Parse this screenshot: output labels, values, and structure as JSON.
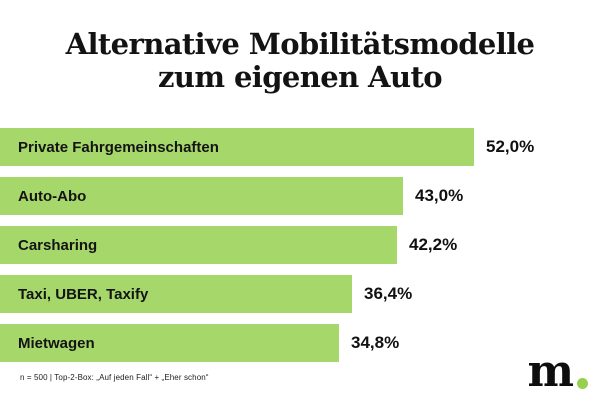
{
  "title": {
    "line1": "Alternative Mobilitätsmodelle",
    "line2": "zum eigenen Auto"
  },
  "chart_data": {
    "type": "bar",
    "orientation": "horizontal",
    "title": "Alternative Mobilitätsmodelle zum eigenen Auto",
    "categories": [
      "Private Fahrgemeinschaften",
      "Auto-Abo",
      "Carsharing",
      "Taxi, UBER, Taxify",
      "Mietwagen"
    ],
    "values": [
      52.0,
      43.0,
      42.2,
      36.4,
      34.8
    ],
    "value_labels": [
      "52,0%",
      "43,0%",
      "42,2%",
      "36,4%",
      "34,8%"
    ],
    "unit": "%",
    "sorted": "descending",
    "bar_color": "#a6d76a",
    "label_position": "inside-left",
    "value_position": "outside-right",
    "grid": false,
    "legend": false
  },
  "footnote": "n = 500 | Top-2-Box: „Auf jeden Fall“ + „Eher schon“",
  "logo": {
    "text": "m",
    "dot_color": "#95d04f",
    "text_color": "#0e0e0e"
  }
}
